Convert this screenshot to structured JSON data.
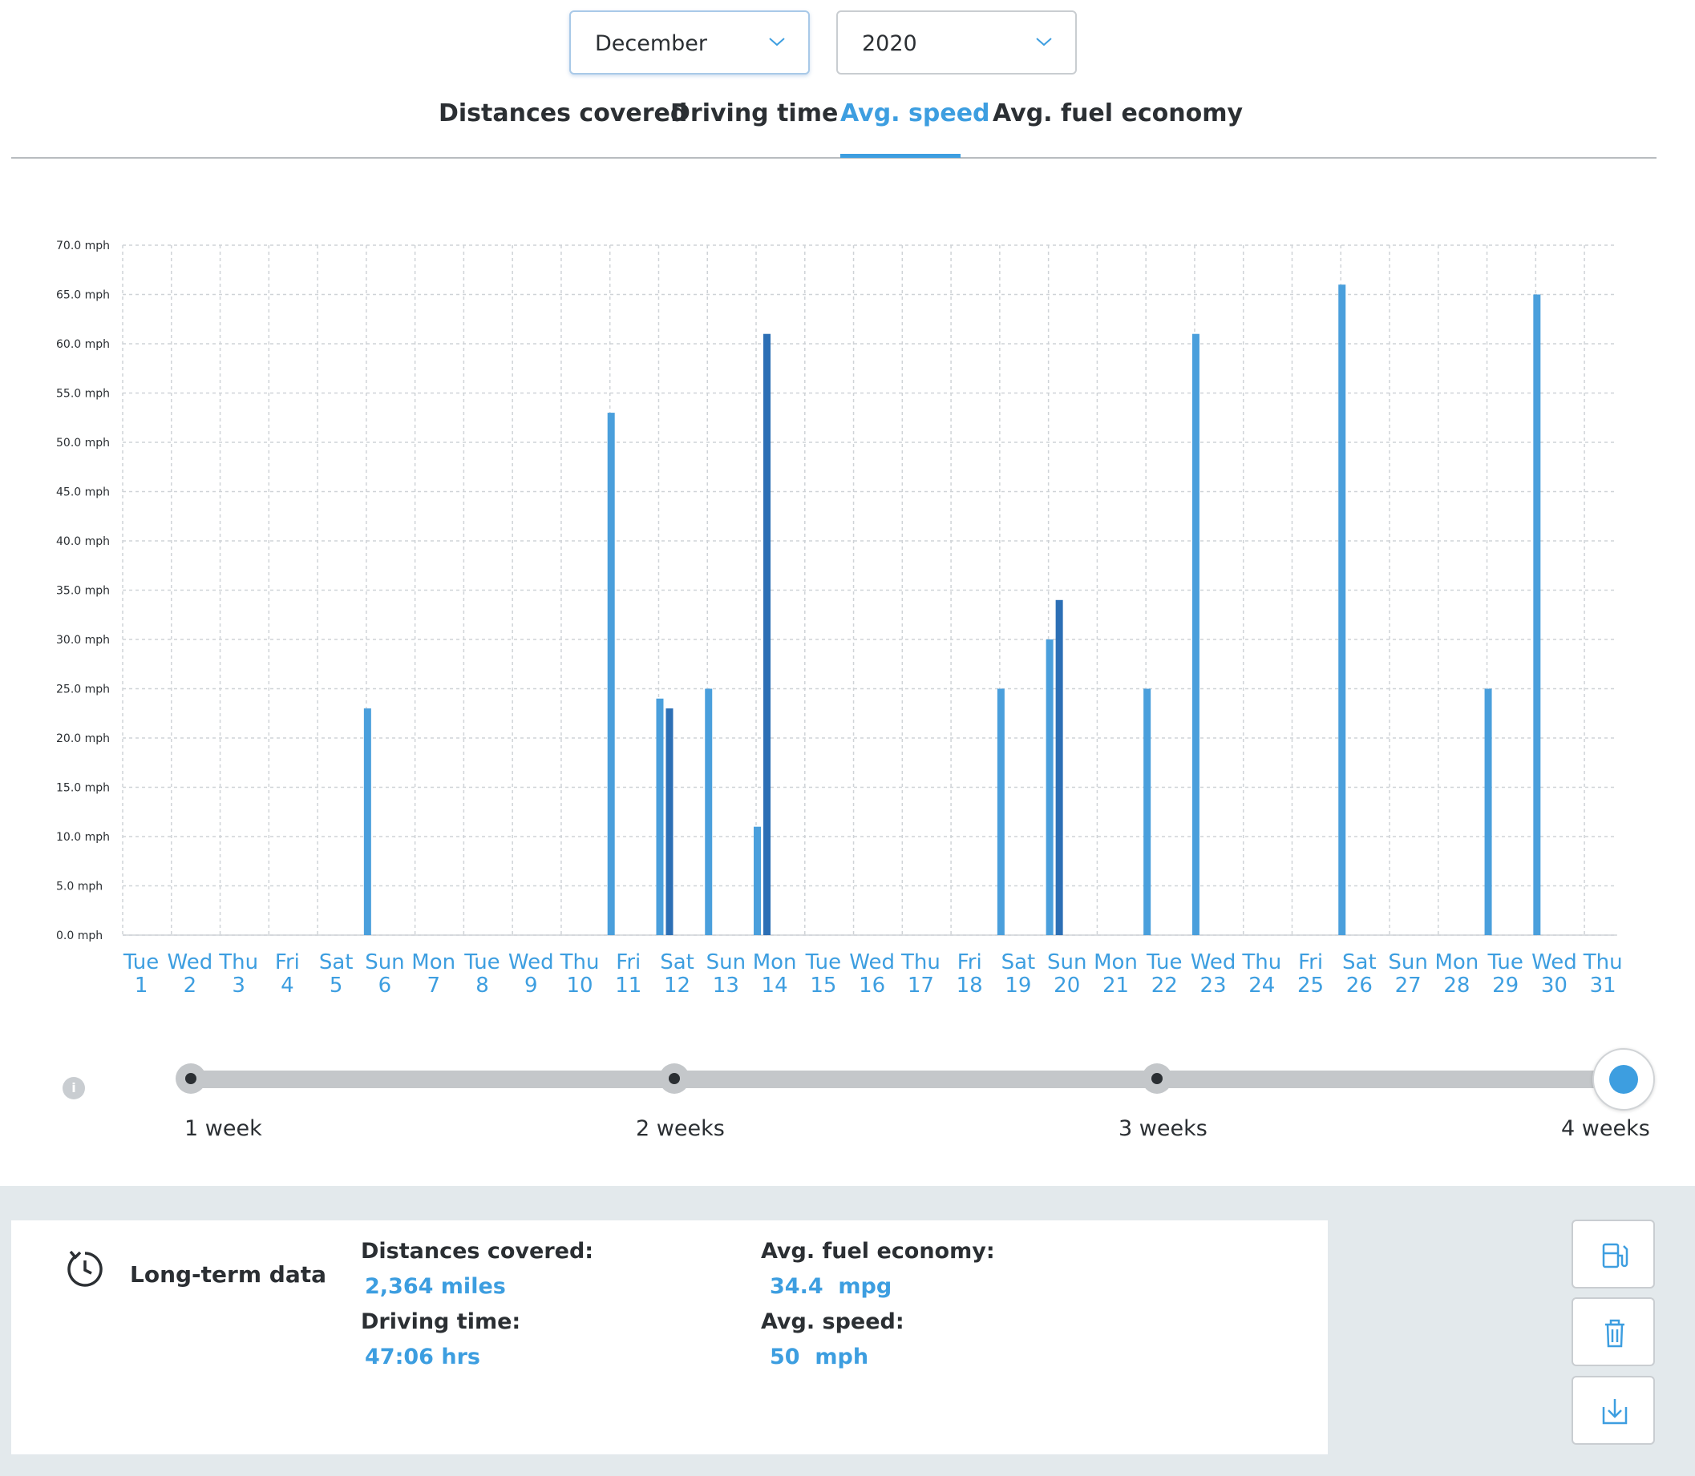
{
  "filters": {
    "month": "December",
    "year": "2020"
  },
  "tabs": [
    {
      "label": "Distances covered",
      "active": false
    },
    {
      "label": "Driving time",
      "active": false
    },
    {
      "label": "Avg. speed",
      "active": true
    },
    {
      "label": "Avg. fuel economy",
      "active": false
    }
  ],
  "colors": {
    "accent": "#3d9ee0",
    "bar_light": "#4a9fdc",
    "bar_dark": "#2c6fb5",
    "text": "#2b2f33",
    "grid": "#cfd3d7"
  },
  "chart_data": {
    "type": "bar",
    "ylim": [
      0,
      70
    ],
    "grid": true,
    "y_ticks": [
      "0.0 mph",
      "5.0 mph",
      "10.0 mph",
      "15.0 mph",
      "20.0 mph",
      "25.0 mph",
      "30.0 mph",
      "35.0 mph",
      "40.0 mph",
      "45.0 mph",
      "50.0 mph",
      "55.0 mph",
      "60.0 mph",
      "65.0 mph",
      "70.0 mph"
    ],
    "categories": [
      {
        "day": "Tue",
        "date": "1"
      },
      {
        "day": "Wed",
        "date": "2"
      },
      {
        "day": "Thu",
        "date": "3"
      },
      {
        "day": "Fri",
        "date": "4"
      },
      {
        "day": "Sat",
        "date": "5"
      },
      {
        "day": "Sun",
        "date": "6"
      },
      {
        "day": "Mon",
        "date": "7"
      },
      {
        "day": "Tue",
        "date": "8"
      },
      {
        "day": "Wed",
        "date": "9"
      },
      {
        "day": "Thu",
        "date": "10"
      },
      {
        "day": "Fri",
        "date": "11"
      },
      {
        "day": "Sat",
        "date": "12"
      },
      {
        "day": "Sun",
        "date": "13"
      },
      {
        "day": "Mon",
        "date": "14"
      },
      {
        "day": "Tue",
        "date": "15"
      },
      {
        "day": "Wed",
        "date": "16"
      },
      {
        "day": "Thu",
        "date": "17"
      },
      {
        "day": "Fri",
        "date": "18"
      },
      {
        "day": "Sat",
        "date": "19"
      },
      {
        "day": "Sun",
        "date": "20"
      },
      {
        "day": "Mon",
        "date": "21"
      },
      {
        "day": "Tue",
        "date": "22"
      },
      {
        "day": "Wed",
        "date": "23"
      },
      {
        "day": "Thu",
        "date": "24"
      },
      {
        "day": "Fri",
        "date": "25"
      },
      {
        "day": "Sat",
        "date": "26"
      },
      {
        "day": "Sun",
        "date": "27"
      },
      {
        "day": "Mon",
        "date": "28"
      },
      {
        "day": "Tue",
        "date": "29"
      },
      {
        "day": "Wed",
        "date": "30"
      },
      {
        "day": "Thu",
        "date": "31"
      }
    ],
    "bars": [
      {
        "day": 5,
        "trip": 1,
        "value": 23
      },
      {
        "day": 10,
        "trip": 1,
        "value": 53
      },
      {
        "day": 11,
        "trip": 1,
        "value": 24
      },
      {
        "day": 11,
        "trip": 2,
        "value": 23
      },
      {
        "day": 12,
        "trip": 1,
        "value": 25
      },
      {
        "day": 13,
        "trip": 1,
        "value": 11
      },
      {
        "day": 13,
        "trip": 2,
        "value": 61
      },
      {
        "day": 18,
        "trip": 1,
        "value": 25
      },
      {
        "day": 19,
        "trip": 1,
        "value": 30
      },
      {
        "day": 19,
        "trip": 2,
        "value": 34
      },
      {
        "day": 21,
        "trip": 1,
        "value": 25
      },
      {
        "day": 22,
        "trip": 1,
        "value": 61
      },
      {
        "day": 25,
        "trip": 1,
        "value": 66
      },
      {
        "day": 28,
        "trip": 1,
        "value": 25
      },
      {
        "day": 29,
        "trip": 1,
        "value": 65
      }
    ]
  },
  "range_slider": {
    "info": "i",
    "stops": [
      "1 week",
      "2 weeks",
      "3 weeks",
      "4 weeks"
    ],
    "selected": "4 weeks"
  },
  "long_term": {
    "title": "Long-term data",
    "distances_label": "Distances covered:",
    "distances_value": "2,364 miles",
    "driving_time_label": "Driving time:",
    "driving_time_value": "47:06 hrs",
    "fuel_label": "Avg. fuel economy:",
    "fuel_value": "34.4  mpg",
    "speed_label": "Avg. speed:",
    "speed_value": "50  mph"
  },
  "actions": [
    {
      "icon": "fuel-pump-icon"
    },
    {
      "icon": "trash-icon"
    },
    {
      "icon": "download-icon"
    }
  ]
}
